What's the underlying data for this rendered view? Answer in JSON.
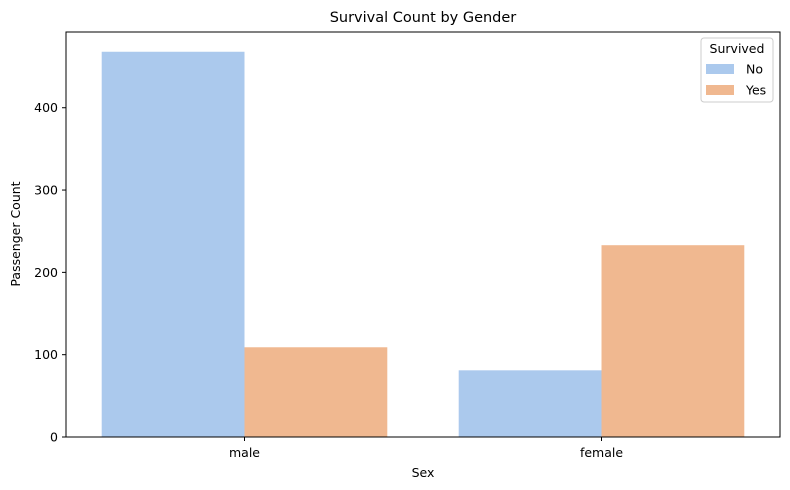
{
  "chart_data": {
    "type": "bar",
    "title": "Survival Count by Gender",
    "xlabel": "Sex",
    "ylabel": "Passenger Count",
    "categories": [
      "male",
      "female"
    ],
    "series": [
      {
        "name": "No",
        "color": "#abc9ed",
        "values": [
          468,
          81
        ]
      },
      {
        "name": "Yes",
        "color": "#f0b890",
        "values": [
          109,
          233
        ]
      }
    ],
    "ylim": [
      0,
      492
    ],
    "yticks": [
      0,
      100,
      200,
      300,
      400
    ],
    "legend": {
      "title": "Survived",
      "placement": "top-right"
    },
    "grid": false
  }
}
